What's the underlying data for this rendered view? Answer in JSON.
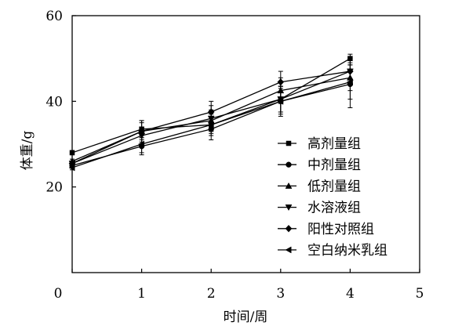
{
  "chart_data": {
    "type": "line",
    "title": "",
    "xlabel": "时间/周",
    "ylabel": "体重/g",
    "xlim": [
      0,
      5
    ],
    "ylim": [
      0,
      60
    ],
    "x_ticks": [
      "0",
      "1",
      "2",
      "3",
      "4",
      "5"
    ],
    "y_ticks": [
      "20",
      "40",
      "60"
    ],
    "grid": false,
    "legend_position": "lower-right",
    "x": [
      0,
      1,
      2,
      3,
      4
    ],
    "series": [
      {
        "name": "高剂量组",
        "marker": "square",
        "values": [
          28,
          33.5,
          34.5,
          40.5,
          50
        ],
        "errors": [
          0.5,
          2,
          2,
          3,
          1
        ]
      },
      {
        "name": "中剂量组",
        "marker": "circle",
        "values": [
          25,
          29.5,
          33.5,
          40,
          44
        ],
        "errors": [
          0.5,
          2,
          2.5,
          3.5,
          5.5
        ]
      },
      {
        "name": "低剂量组",
        "marker": "triangle-up",
        "values": [
          26,
          33,
          35.5,
          42.5,
          45.5
        ],
        "errors": [
          0.5,
          2,
          2.5,
          3,
          3
        ]
      },
      {
        "name": "水溶液组",
        "marker": "triangle-down",
        "values": [
          25.5,
          32,
          36,
          40.5,
          47
        ],
        "errors": [
          0.5,
          2,
          3,
          3,
          3
        ]
      },
      {
        "name": "阳性对照组",
        "marker": "diamond",
        "values": [
          25.5,
          33,
          37.5,
          44.5,
          47
        ],
        "errors": [
          0.5,
          2.5,
          2.5,
          2.5,
          3
        ]
      },
      {
        "name": "空白纳米乳组",
        "marker": "triangle-left",
        "values": [
          24.5,
          30,
          34.5,
          40,
          44.5
        ],
        "errors": [
          0.5,
          2,
          2.5,
          3,
          4
        ]
      }
    ]
  }
}
